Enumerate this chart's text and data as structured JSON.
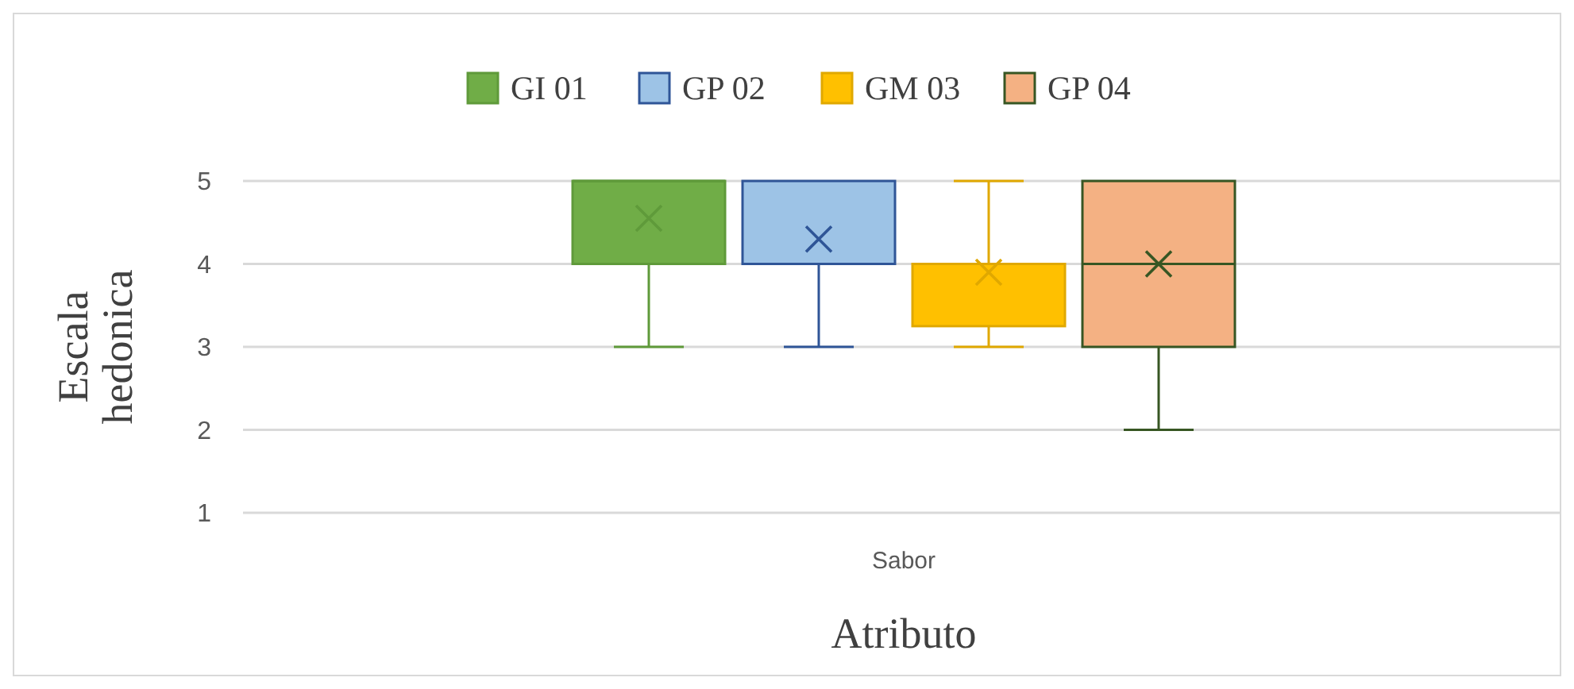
{
  "chart_data": {
    "type": "box",
    "xlabel": "Atributo",
    "ylabel": "Escala hedonica",
    "categories": [
      "Sabor"
    ],
    "ylim": [
      1,
      5
    ],
    "yticks": [
      1,
      2,
      3,
      4,
      5
    ],
    "grid": "y",
    "legend": "top",
    "marker": "cross",
    "series": [
      {
        "name": "GI 01",
        "color": "#70ad47",
        "boxes": [
          {
            "low": 3,
            "q1": 4,
            "median": 5,
            "q3": 5,
            "high": 5,
            "mean": 4.55
          }
        ]
      },
      {
        "name": "GP 02",
        "color": "#9dc3e6",
        "boxes": [
          {
            "low": 3,
            "q1": 4,
            "median": 4,
            "q3": 5,
            "high": 5,
            "mean": 4.3
          }
        ]
      },
      {
        "name": "GM 03",
        "color": "#ffc000",
        "boxes": [
          {
            "low": 3,
            "q1": 3.25,
            "median": 4,
            "q3": 4,
            "high": 5,
            "mean": 3.9
          }
        ]
      },
      {
        "name": "GP 04",
        "color": "#f4b183",
        "boxes": [
          {
            "low": 2,
            "q1": 3,
            "median": 4,
            "q3": 5,
            "high": 5,
            "mean": 4
          }
        ]
      }
    ]
  }
}
